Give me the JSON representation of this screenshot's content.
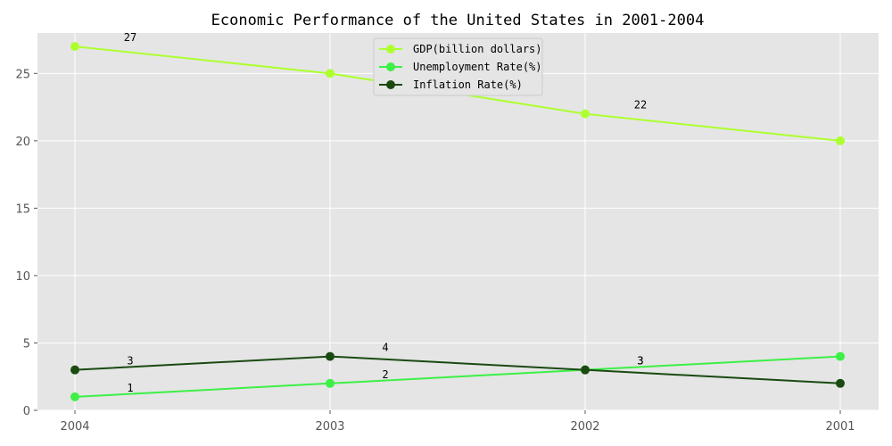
{
  "chart_data": {
    "type": "line",
    "title": "Economic Performance of the United States in 2001-2004",
    "xlabel": "",
    "ylabel": "",
    "categories": [
      "2004",
      "2003",
      "2002",
      "2001"
    ],
    "ylim": [
      0,
      28
    ],
    "yticks": [
      0,
      5,
      10,
      15,
      20,
      25
    ],
    "grid": true,
    "legend_position": "top-center",
    "background_color": "#e5e5e5",
    "series": [
      {
        "name": "GDP(billion dollars)",
        "values": [
          27,
          25,
          22,
          20
        ],
        "color": "#adff2f",
        "labels": [
          "27",
          "25",
          "22",
          "20"
        ]
      },
      {
        "name": "Unemployment Rate(%)",
        "values": [
          1,
          2,
          3,
          4
        ],
        "color": "#3cf046",
        "labels": [
          "1",
          "2",
          "3",
          "4"
        ]
      },
      {
        "name": "Inflation Rate(%)",
        "values": [
          3,
          4,
          3,
          2
        ],
        "color": "#1a4a12",
        "labels": [
          "3",
          "4",
          "3",
          "2"
        ]
      }
    ]
  }
}
